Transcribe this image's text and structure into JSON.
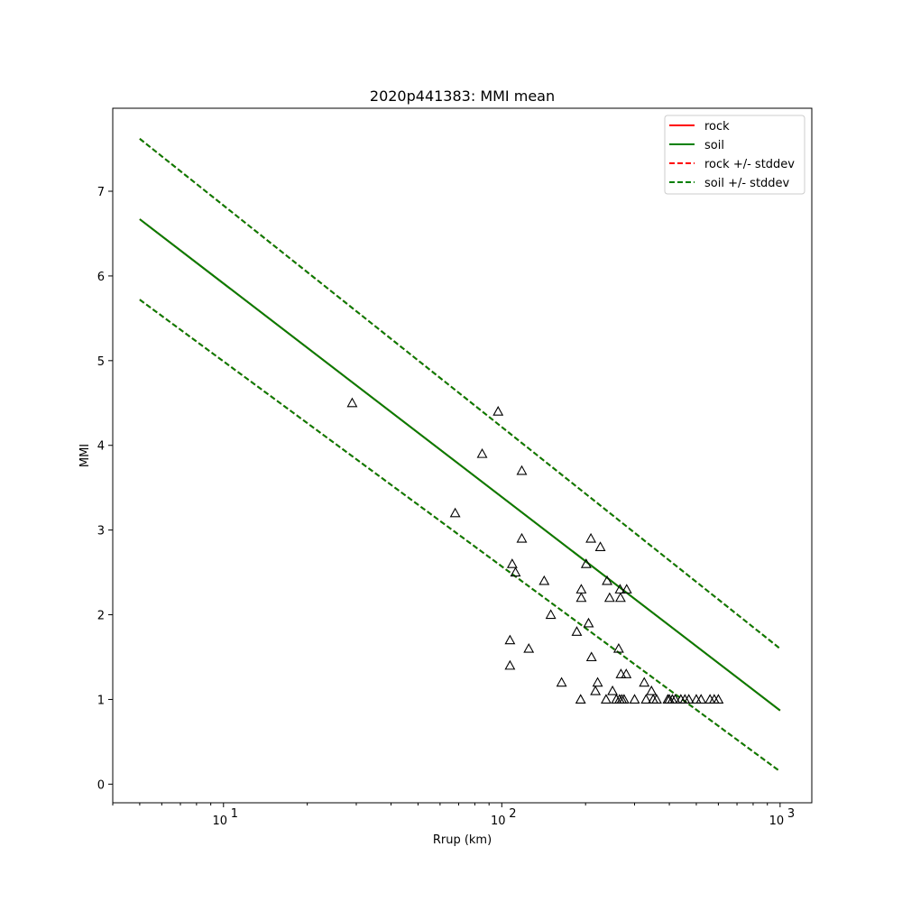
{
  "chart_data": {
    "type": "scatter",
    "title": "2020p441383: MMI mean",
    "xlabel": "Rrup (km)",
    "ylabel": "MMI",
    "xscale": "log",
    "xlim": [
      4,
      1300
    ],
    "ylim": [
      -0.22,
      7.98
    ],
    "x_ticks": [
      {
        "value": 10,
        "base": "10",
        "exp": "1"
      },
      {
        "value": 100,
        "base": "10",
        "exp": "2"
      },
      {
        "value": 1000,
        "base": "10",
        "exp": "3"
      }
    ],
    "y_ticks": [
      0,
      1,
      2,
      3,
      4,
      5,
      6,
      7
    ],
    "grid": false,
    "legend_position": "top-right",
    "series": [
      {
        "name": "rock",
        "style": "solid",
        "color": "#ff0000",
        "x": [
          5,
          1000
        ],
        "y": [
          6.67,
          0.87
        ]
      },
      {
        "name": "soil",
        "style": "solid",
        "color": "#008000",
        "x": [
          5,
          1000
        ],
        "y": [
          6.67,
          0.87
        ]
      },
      {
        "name": "rock +/- stddev",
        "style": "dashed",
        "color": "#ff0000",
        "x": [
          5,
          1000
        ],
        "upper": [
          7.62,
          1.6
        ],
        "lower": [
          5.72,
          0.15
        ]
      },
      {
        "name": "soil +/- stddev",
        "style": "dashed",
        "color": "#008000",
        "x": [
          5,
          1000
        ],
        "upper": [
          7.62,
          1.6
        ],
        "lower": [
          5.72,
          0.15
        ]
      }
    ],
    "observations": {
      "marker": "triangle",
      "color": "#000000",
      "x": [
        29,
        68,
        85,
        97,
        107,
        107,
        109,
        112,
        118,
        118,
        125,
        142,
        150,
        164,
        186,
        192,
        193,
        193,
        201,
        205,
        209,
        210,
        217,
        221,
        226,
        237,
        239,
        244,
        250,
        258,
        263,
        265,
        266,
        267,
        268,
        270,
        275,
        280,
        281,
        300,
        325,
        330,
        345,
        350,
        360,
        395,
        400,
        410,
        420,
        440,
        455,
        470,
        500,
        520,
        560,
        580,
        600
      ],
      "y": [
        4.5,
        3.2,
        3.9,
        4.4,
        1.7,
        1.4,
        2.6,
        2.5,
        3.7,
        2.9,
        1.6,
        2.4,
        2.0,
        1.2,
        1.8,
        1.0,
        2.3,
        2.2,
        2.6,
        1.9,
        2.9,
        1.5,
        1.1,
        1.2,
        2.8,
        1.0,
        2.4,
        2.2,
        1.1,
        1.0,
        1.6,
        1.0,
        2.3,
        2.2,
        1.3,
        1.0,
        1.0,
        1.3,
        2.3,
        1.0,
        1.2,
        1.0,
        1.1,
        1.0,
        1.0,
        1.0,
        1.0,
        1.0,
        1.0,
        1.0,
        1.0,
        1.0,
        1.0,
        1.0,
        1.0,
        1.0,
        1.0
      ]
    }
  }
}
